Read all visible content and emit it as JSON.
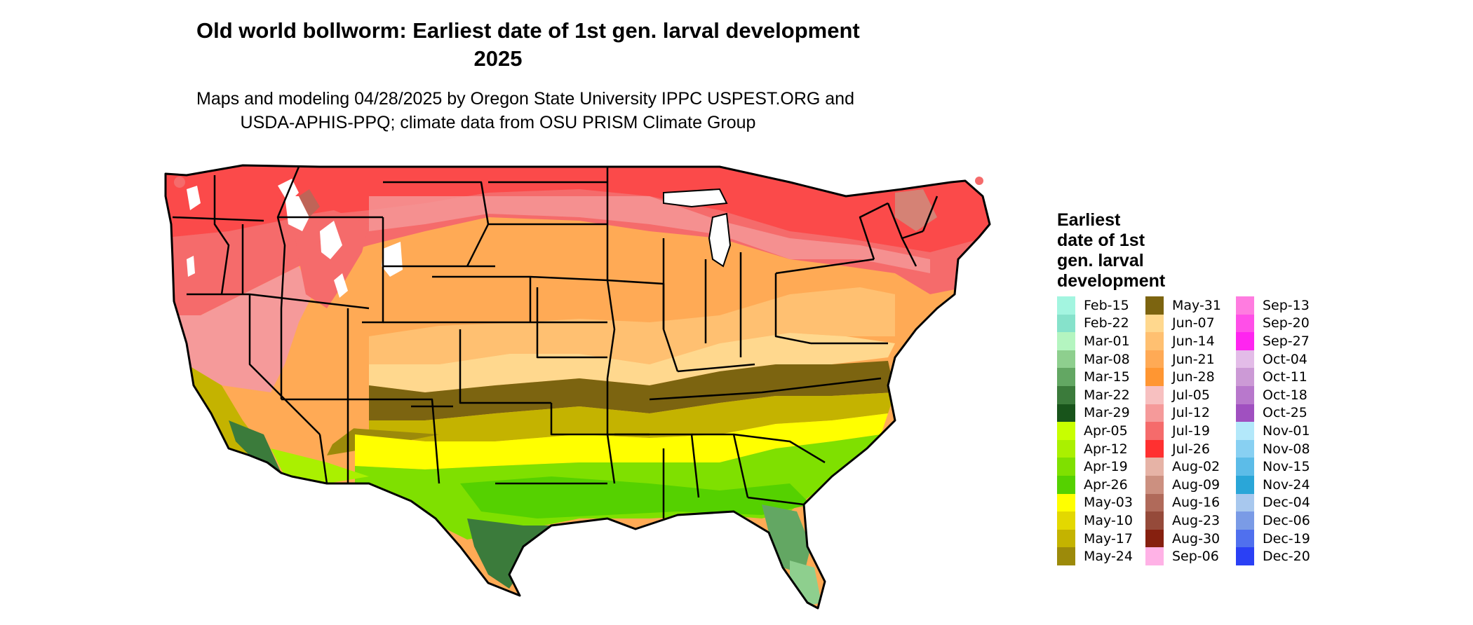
{
  "title": {
    "line1": "Old world bollworm: Earliest date of 1st gen. larval development",
    "line2": "2025"
  },
  "subtitle": {
    "line1": "Maps and modeling 04/28/2025 by Oregon State University IPPC USPEST.ORG and",
    "line2": "USDA-APHIS-PPQ; climate data from OSU PRISM Climate Group"
  },
  "map": {
    "subject": "Contiguous United States with state boundaries",
    "zones": [
      {
        "region": "Northern tier and mountain west",
        "date": "Jul-19"
      },
      {
        "region": "Central plains and Midwest",
        "date": "Jun-21"
      },
      {
        "region": "Mid-South band",
        "date": "May-31"
      },
      {
        "region": "Gulf states and southern Atlantic coast",
        "date": "Apr-26"
      },
      {
        "region": "South Texas and Florida",
        "date": "Mar-22"
      }
    ]
  },
  "legend": {
    "title_lines": [
      "Earliest",
      "date of 1st",
      "gen. larval",
      "development"
    ],
    "columns": [
      [
        {
          "label": "Feb-15",
          "color": "#a3f5e0"
        },
        {
          "label": "Feb-22",
          "color": "#86e2cb"
        },
        {
          "label": "Mar-01",
          "color": "#b4f5c0"
        },
        {
          "label": "Mar-08",
          "color": "#8ecf8e"
        },
        {
          "label": "Mar-15",
          "color": "#63a763"
        },
        {
          "label": "Mar-22",
          "color": "#3b7b3b"
        },
        {
          "label": "Mar-29",
          "color": "#18541b"
        },
        {
          "label": "Apr-05",
          "color": "#c8ff00"
        },
        {
          "label": "Apr-12",
          "color": "#aaf000"
        },
        {
          "label": "Apr-19",
          "color": "#7fe000"
        },
        {
          "label": "Apr-26",
          "color": "#55d100"
        },
        {
          "label": "May-03",
          "color": "#ffff00"
        },
        {
          "label": "May-10",
          "color": "#e3d800"
        },
        {
          "label": "May-17",
          "color": "#c4b300"
        },
        {
          "label": "May-24",
          "color": "#9c8a0a"
        }
      ],
      [
        {
          "label": "May-31",
          "color": "#7c6410"
        },
        {
          "label": "Jun-07",
          "color": "#ffd88e"
        },
        {
          "label": "Jun-14",
          "color": "#ffc071"
        },
        {
          "label": "Jun-21",
          "color": "#ffaa55"
        },
        {
          "label": "Jun-28",
          "color": "#ff9632"
        },
        {
          "label": "Jul-05",
          "color": "#f7c0c0"
        },
        {
          "label": "Jul-12",
          "color": "#f59a9a"
        },
        {
          "label": "Jul-19",
          "color": "#f56b6b"
        },
        {
          "label": "Jul-26",
          "color": "#ff3030"
        },
        {
          "label": "Aug-02",
          "color": "#e6b3a6"
        },
        {
          "label": "Aug-09",
          "color": "#cc9080"
        },
        {
          "label": "Aug-16",
          "color": "#b06a5a"
        },
        {
          "label": "Aug-23",
          "color": "#954a3a"
        },
        {
          "label": "Aug-30",
          "color": "#86200f"
        },
        {
          "label": "Sep-06",
          "color": "#ffb2e6"
        }
      ],
      [
        {
          "label": "Sep-13",
          "color": "#ff7ce0"
        },
        {
          "label": "Sep-20",
          "color": "#ff4fe8"
        },
        {
          "label": "Sep-27",
          "color": "#ff25f0"
        },
        {
          "label": "Oct-04",
          "color": "#e3bce8"
        },
        {
          "label": "Oct-11",
          "color": "#cc9ad6"
        },
        {
          "label": "Oct-18",
          "color": "#b878cc"
        },
        {
          "label": "Oct-25",
          "color": "#a050c0"
        },
        {
          "label": "Nov-01",
          "color": "#b3e8fa"
        },
        {
          "label": "Nov-08",
          "color": "#88d0f2"
        },
        {
          "label": "Nov-15",
          "color": "#5cbce8"
        },
        {
          "label": "Nov-24",
          "color": "#2aa6d8"
        },
        {
          "label": "Dec-04",
          "color": "#a8c8ee"
        },
        {
          "label": "Dec-06",
          "color": "#7a9be6"
        },
        {
          "label": "Dec-19",
          "color": "#5070ee"
        },
        {
          "label": "Dec-20",
          "color": "#2a40f5"
        }
      ]
    ]
  }
}
